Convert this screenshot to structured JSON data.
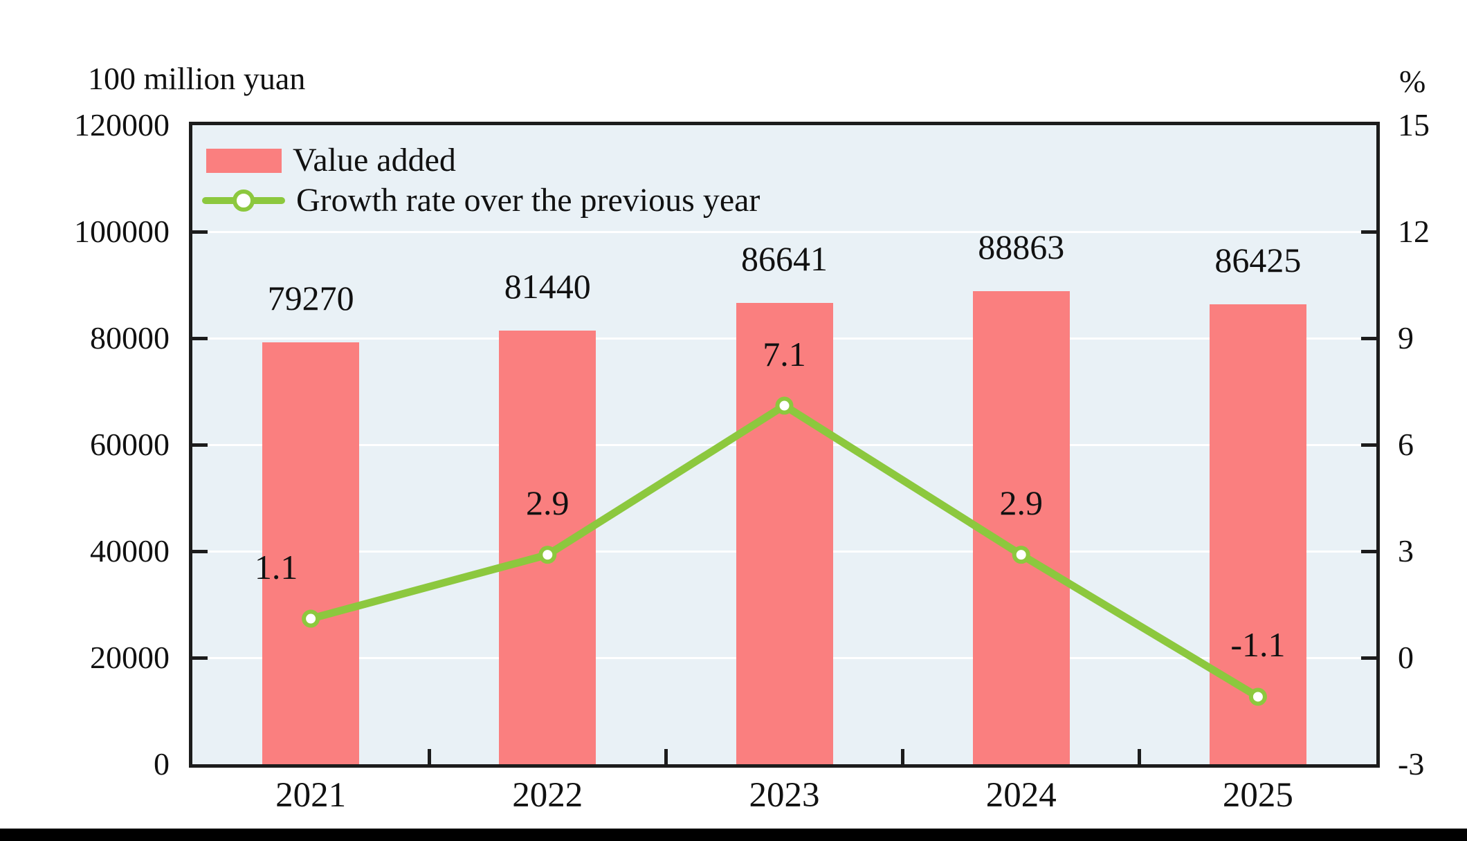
{
  "chart_data": {
    "type": "bar+line",
    "categories": [
      "2021",
      "2022",
      "2023",
      "2024",
      "2025"
    ],
    "series": [
      {
        "name": "Value added",
        "type": "bar",
        "axis": "left",
        "values": [
          79270,
          81440,
          86641,
          88863,
          86425
        ],
        "value_labels": [
          "79270",
          "81440",
          "86641",
          "88863",
          "86425"
        ],
        "color": "#fa7f7f"
      },
      {
        "name": "Growth rate over the previous year",
        "type": "line",
        "axis": "right",
        "values": [
          1.1,
          2.9,
          7.1,
          2.9,
          -1.1
        ],
        "value_labels": [
          "1.1",
          "2.9",
          "7.1",
          "2.9",
          "-1.1"
        ],
        "color": "#8cc83e",
        "marker": "circle-white-fill-green-ring"
      }
    ],
    "left_axis": {
      "title": "100 million yuan",
      "min": 0,
      "max": 120000,
      "step": 20000,
      "tick_labels": [
        "0",
        "20000",
        "40000",
        "60000",
        "80000",
        "100000",
        "120000"
      ]
    },
    "right_axis": {
      "title": "%",
      "min": -3,
      "max": 15,
      "step": 3,
      "tick_labels": [
        "-3",
        "0",
        "3",
        "6",
        "9",
        "12",
        "15"
      ]
    },
    "grid": true,
    "legend_position": "top-left",
    "colors": {
      "plot_background": "#e9f1f6",
      "gridline": "#ffffff",
      "axis_frame": "#1c1c1c",
      "text": "#111111",
      "bottom_bar": "#000000"
    }
  }
}
